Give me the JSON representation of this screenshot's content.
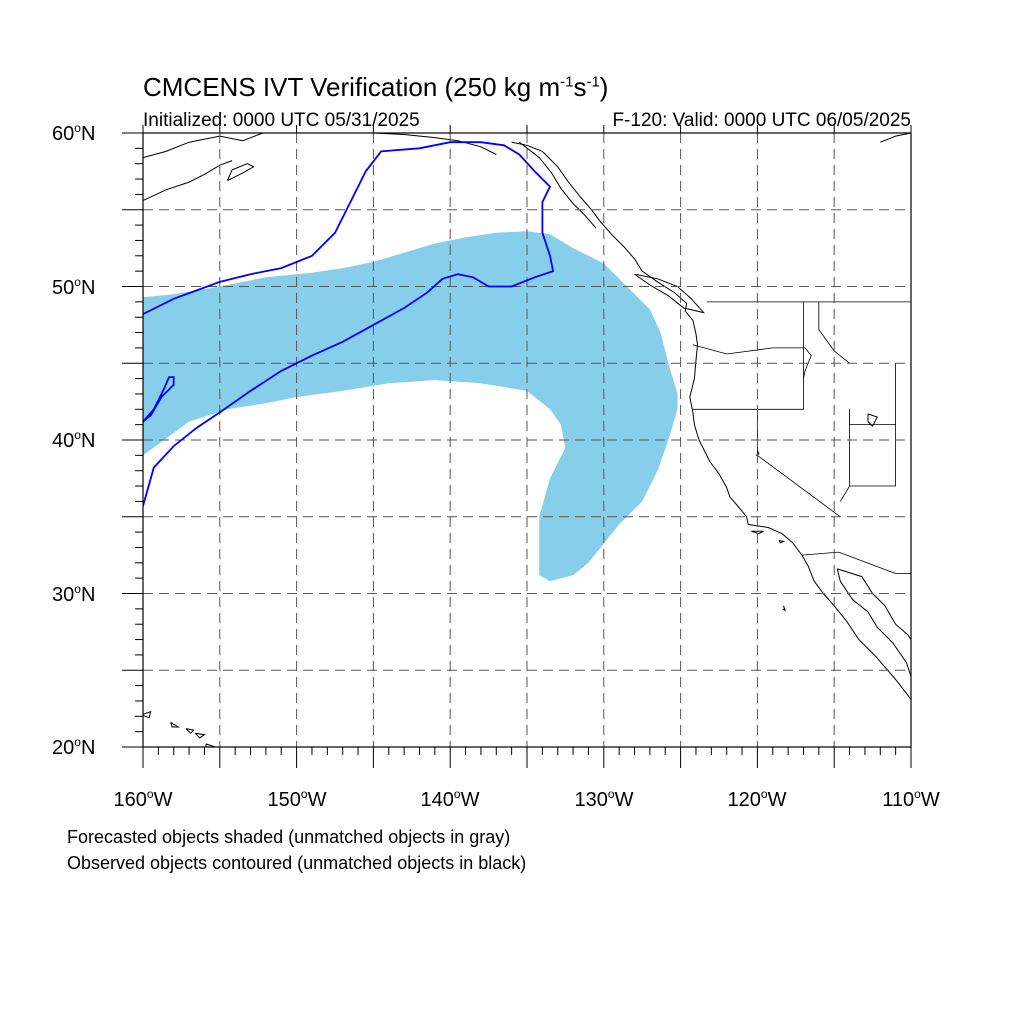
{
  "title": {
    "prefix": "CMCENS IVT Verification (250 kg m",
    "exp1": "-1",
    "mid": "s",
    "exp2": "-1",
    "suffix": ")"
  },
  "initialized": "Initialized: 0000 UTC 05/31/2025",
  "valid": "F-120: Valid: 0000 UTC 06/05/2025",
  "lat_labels": [
    {
      "deg": "60",
      "hem": "N"
    },
    {
      "deg": "50",
      "hem": "N"
    },
    {
      "deg": "40",
      "hem": "N"
    },
    {
      "deg": "30",
      "hem": "N"
    },
    {
      "deg": "20",
      "hem": "N"
    }
  ],
  "lon_labels": [
    {
      "deg": "160",
      "hem": "W"
    },
    {
      "deg": "150",
      "hem": "W"
    },
    {
      "deg": "140",
      "hem": "W"
    },
    {
      "deg": "130",
      "hem": "W"
    },
    {
      "deg": "120",
      "hem": "W"
    },
    {
      "deg": "110",
      "hem": "W"
    }
  ],
  "legend": {
    "line1": "Forecasted objects shaded (unmatched objects in gray)",
    "line2": "Observed objects contoured (unmatched objects in black)"
  },
  "map": {
    "lon_range": [
      -160,
      -110
    ],
    "lat_range": [
      20,
      60
    ],
    "forecast_color": "#87CEEB",
    "observed_color": "#0000FF",
    "forecast_object": [
      [
        -160,
        49.3
      ],
      [
        -158,
        49.5
      ],
      [
        -155,
        50
      ],
      [
        -152,
        50.6
      ],
      [
        -149,
        50.9
      ],
      [
        -147,
        51.2
      ],
      [
        -145,
        51.6
      ],
      [
        -143,
        52.2
      ],
      [
        -141,
        52.8
      ],
      [
        -139,
        53.2
      ],
      [
        -137,
        53.5
      ],
      [
        -135,
        53.6
      ],
      [
        -133.5,
        53.4
      ],
      [
        -132,
        52.5
      ],
      [
        -130,
        51.5
      ],
      [
        -128.5,
        50
      ],
      [
        -127,
        48.5
      ],
      [
        -126.3,
        47
      ],
      [
        -125.8,
        45
      ],
      [
        -125.2,
        43
      ],
      [
        -125.2,
        42
      ],
      [
        -125.8,
        40
      ],
      [
        -126.5,
        38
      ],
      [
        -127.5,
        36
      ],
      [
        -129,
        34.5
      ],
      [
        -131,
        32
      ],
      [
        -132,
        31.2
      ],
      [
        -133.5,
        30.8
      ],
      [
        -134.2,
        31.2
      ],
      [
        -134.2,
        35
      ],
      [
        -133.5,
        37.5
      ],
      [
        -132.5,
        39.5
      ],
      [
        -132.8,
        41
      ],
      [
        -133.5,
        42
      ],
      [
        -135,
        43.2
      ],
      [
        -138,
        43.7
      ],
      [
        -141,
        43.9
      ],
      [
        -144,
        43.7
      ],
      [
        -147,
        43.2
      ],
      [
        -150,
        42.8
      ],
      [
        -152,
        42.4
      ],
      [
        -154.5,
        42
      ],
      [
        -157,
        41.2
      ],
      [
        -160,
        39
      ]
    ],
    "observed_object": [
      [
        -160,
        48.2
      ],
      [
        -158,
        49.2
      ],
      [
        -155,
        50.3
      ],
      [
        -153,
        50.8
      ],
      [
        -151,
        51.2
      ],
      [
        -149,
        52
      ],
      [
        -147.5,
        53.5
      ],
      [
        -146.5,
        55.5
      ],
      [
        -145.5,
        57.5
      ],
      [
        -144.5,
        58.8
      ],
      [
        -142,
        59
      ],
      [
        -140,
        59.4
      ],
      [
        -138,
        59.4
      ],
      [
        -136.5,
        59.2
      ],
      [
        -135.5,
        58.6
      ],
      [
        -134.5,
        57.5
      ],
      [
        -133.5,
        56.5
      ],
      [
        -134,
        55.5
      ],
      [
        -134,
        53.5
      ],
      [
        -133.5,
        52
      ],
      [
        -133.3,
        51
      ],
      [
        -134.5,
        50.6
      ],
      [
        -136,
        50
      ],
      [
        -137.5,
        50
      ],
      [
        -138.5,
        50.6
      ],
      [
        -139.5,
        50.8
      ],
      [
        -140.5,
        50.5
      ],
      [
        -141.5,
        49.6
      ],
      [
        -143,
        48.6
      ],
      [
        -145,
        47.5
      ],
      [
        -147,
        46.4
      ],
      [
        -149,
        45.5
      ],
      [
        -151,
        44.5
      ],
      [
        -153,
        43.2
      ],
      [
        -155,
        41.8
      ],
      [
        -156.5,
        40.8
      ],
      [
        -158,
        39.6
      ],
      [
        -159.3,
        38.2
      ],
      [
        -160,
        35.7
      ]
    ],
    "observed_small": [
      [
        -160,
        41.2
      ],
      [
        -159.3,
        42
      ],
      [
        -158.7,
        43.2
      ],
      [
        -158.3,
        44.1
      ],
      [
        -158,
        44.1
      ],
      [
        -158,
        43.6
      ],
      [
        -158.8,
        42.8
      ],
      [
        -159.5,
        41.6
      ],
      [
        -160,
        41.2
      ]
    ],
    "coast": [
      [
        -136,
        59.4
      ],
      [
        -135,
        59.2
      ],
      [
        -134,
        58.8
      ],
      [
        -133,
        57.8
      ],
      [
        -132.3,
        56.8
      ],
      [
        -131.5,
        55.8
      ],
      [
        -130.8,
        55
      ],
      [
        -130.2,
        54.2
      ],
      [
        -129.5,
        53.4
      ],
      [
        -128.7,
        52.6
      ],
      [
        -128,
        51.8
      ],
      [
        -127.5,
        51
      ],
      [
        -126.5,
        50.3
      ],
      [
        -125.4,
        49.6
      ],
      [
        -124.6,
        48.9
      ],
      [
        -124.7,
        48.4
      ],
      [
        -124.2,
        47.8
      ],
      [
        -124,
        46.9
      ],
      [
        -123.9,
        46.2
      ],
      [
        -124,
        45.2
      ],
      [
        -124.1,
        44
      ],
      [
        -124.4,
        42.8
      ],
      [
        -124.2,
        41.8
      ],
      [
        -124.1,
        41
      ],
      [
        -123.8,
        40
      ],
      [
        -123.5,
        39.4
      ],
      [
        -123.1,
        38.6
      ],
      [
        -122.5,
        37.8
      ],
      [
        -122,
        36.9
      ],
      [
        -121.8,
        36.3
      ],
      [
        -121.2,
        35.6
      ],
      [
        -120.7,
        35
      ],
      [
        -120.6,
        34.5
      ],
      [
        -119.3,
        34.3
      ],
      [
        -118.4,
        33.9
      ],
      [
        -117.7,
        33.3
      ],
      [
        -117.1,
        32.5
      ],
      [
        -116.7,
        31.8
      ],
      [
        -116.3,
        30.8
      ],
      [
        -115.7,
        30
      ],
      [
        -115,
        29.2
      ],
      [
        -114.2,
        28.2
      ],
      [
        -113.4,
        27
      ],
      [
        -112.2,
        25.8
      ],
      [
        -111,
        24.4
      ],
      [
        -110.3,
        23.5
      ],
      [
        -110,
        23.1
      ]
    ],
    "coast_gulf": [
      [
        -114.8,
        31.6
      ],
      [
        -114.6,
        30.8
      ],
      [
        -113.8,
        29.6
      ],
      [
        -112.8,
        28.8
      ],
      [
        -112.2,
        27.8
      ],
      [
        -111.2,
        26.8
      ],
      [
        -110.3,
        25.5
      ],
      [
        -110,
        24.6
      ]
    ],
    "coast_mainland_mx": [
      [
        -114.8,
        31.6
      ],
      [
        -113.2,
        31.1
      ],
      [
        -112.5,
        30
      ],
      [
        -111.7,
        29.2
      ],
      [
        -111,
        28
      ],
      [
        -110.2,
        27.3
      ],
      [
        -110,
        27
      ]
    ],
    "coast_inner_bc": [
      [
        -135.5,
        59.4
      ],
      [
        -134.2,
        58.4
      ],
      [
        -133.4,
        57.4
      ],
      [
        -132.8,
        56.4
      ],
      [
        -132,
        55.4
      ],
      [
        -131.2,
        54.6
      ],
      [
        -130.5,
        53.8
      ]
    ],
    "coast_vancouver_island": [
      [
        -128,
        50.8
      ],
      [
        -127,
        50.1
      ],
      [
        -125.8,
        49.4
      ],
      [
        -124.8,
        48.6
      ],
      [
        -123.5,
        48.3
      ],
      [
        -124.3,
        49.2
      ],
      [
        -125.2,
        50
      ],
      [
        -126.5,
        50.5
      ],
      [
        -128,
        50.8
      ]
    ],
    "coast_alaska": [
      [
        -160,
        58.4
      ],
      [
        -158.5,
        58.8
      ],
      [
        -157,
        59.4
      ],
      [
        -155,
        59.8
      ],
      [
        -153.5,
        59.5
      ],
      [
        -152.2,
        60
      ]
    ],
    "coast_alaska_pen": [
      [
        -160,
        55.6
      ],
      [
        -158.5,
        56.3
      ],
      [
        -157,
        56.8
      ],
      [
        -156,
        57.3
      ],
      [
        -155,
        57.9
      ],
      [
        -154.2,
        58.2
      ]
    ],
    "coast_se_alaska": [
      [
        -145,
        60
      ],
      [
        -143,
        59.9
      ],
      [
        -141,
        59.7
      ],
      [
        -139.5,
        59.5
      ],
      [
        -138,
        59.1
      ],
      [
        -137,
        58.6
      ]
    ],
    "hudson_bay": [
      [
        -112,
        59.4
      ],
      [
        -111,
        59.8
      ],
      [
        -110,
        60
      ]
    ],
    "kodiak": [
      [
        -154.5,
        56.9
      ],
      [
        -153.5,
        57.4
      ],
      [
        -152.8,
        57.8
      ],
      [
        -153.2,
        58
      ],
      [
        -154.2,
        57.6
      ],
      [
        -154.5,
        56.9
      ]
    ],
    "hawaii": [
      [
        [
          -160.1,
          22.1
        ],
        [
          -159.5,
          22.3
        ],
        [
          -159.6,
          21.9
        ],
        [
          -160.1,
          22.1
        ]
      ],
      [
        [
          -158.2,
          21.6
        ],
        [
          -157.7,
          21.3
        ],
        [
          -158.1,
          21.3
        ],
        [
          -158.2,
          21.6
        ]
      ],
      [
        [
          -157.2,
          21.2
        ],
        [
          -156.7,
          21.1
        ],
        [
          -156.9,
          20.9
        ],
        [
          -157.2,
          21.2
        ]
      ],
      [
        [
          -156.6,
          20.9
        ],
        [
          -156,
          20.8
        ],
        [
          -156.3,
          20.6
        ],
        [
          -156.6,
          20.9
        ]
      ],
      [
        [
          -155.9,
          20.2
        ],
        [
          -155,
          19.9
        ],
        [
          -154.8,
          19.5
        ],
        [
          -155.6,
          18.9
        ],
        [
          -155.9,
          19.6
        ],
        [
          -155.9,
          20.2
        ]
      ]
    ],
    "channel_islands": [
      [
        [
          -120.4,
          34.05
        ],
        [
          -119.6,
          34.05
        ],
        [
          -119.9,
          33.9
        ],
        [
          -120.4,
          34.05
        ]
      ],
      [
        [
          -118.6,
          33.45
        ],
        [
          -118.3,
          33.4
        ],
        [
          -118.5,
          33.3
        ],
        [
          -118.6,
          33.45
        ]
      ]
    ],
    "guadalupe": [
      [
        -118.3,
        29.2
      ],
      [
        -118.2,
        28.9
      ],
      [
        -118.35,
        29
      ]
    ],
    "borders": [
      [
        [
          -123.3,
          49
        ],
        [
          -110,
          49
        ]
      ],
      [
        [
          -124.2,
          46.2
        ],
        [
          -122,
          45.6
        ],
        [
          -119,
          46
        ],
        [
          -116.9,
          46
        ],
        [
          -116.5,
          45.5
        ],
        [
          -116.9,
          44.5
        ],
        [
          -117,
          44
        ]
      ],
      [
        [
          -117,
          49
        ],
        [
          -117,
          44
        ],
        [
          -117,
          42
        ],
        [
          -124.2,
          42
        ]
      ],
      [
        [
          -120,
          42
        ],
        [
          -120,
          39
        ],
        [
          -114.6,
          35
        ]
      ],
      [
        [
          -114,
          42
        ],
        [
          -114,
          37
        ],
        [
          -114.6,
          36
        ]
      ],
      [
        [
          -111,
          45
        ],
        [
          -111,
          41
        ],
        [
          -114,
          41
        ],
        [
          -114,
          42
        ]
      ],
      [
        [
          -111,
          41
        ],
        [
          -111,
          37
        ],
        [
          -114,
          37
        ]
      ],
      [
        [
          -117.1,
          32.5
        ],
        [
          -114.7,
          32.7
        ],
        [
          -111,
          31.3
        ],
        [
          -110,
          31.3
        ]
      ],
      [
        [
          -116,
          49
        ],
        [
          -116,
          47.2
        ],
        [
          -115,
          45.8
        ],
        [
          -114,
          45
        ]
      ]
    ],
    "lakes": [
      [
        [
          -112.8,
          41.7
        ],
        [
          -112.2,
          41.5
        ],
        [
          -112.5,
          40.9
        ],
        [
          -112.8,
          41.2
        ],
        [
          -112.8,
          41.7
        ]
      ],
      [
        [
          -120,
          39.3
        ],
        [
          -119.9,
          39.1
        ],
        [
          -120.1,
          39
        ]
      ]
    ]
  }
}
